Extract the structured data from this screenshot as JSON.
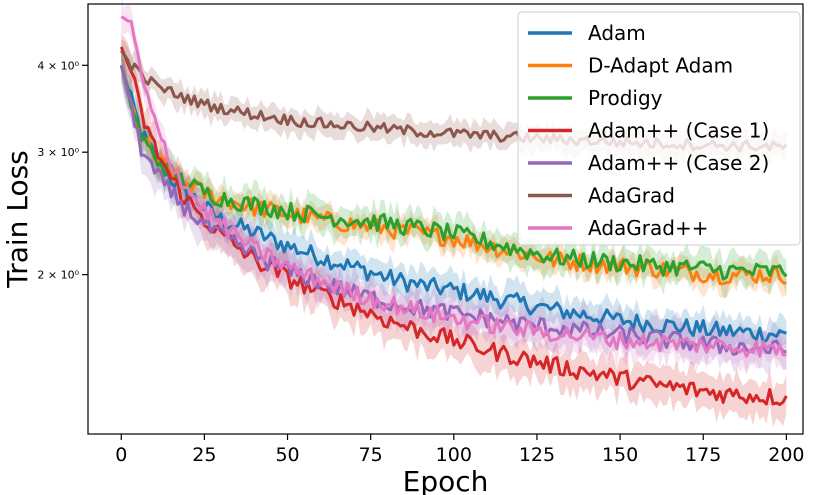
{
  "chart_data": {
    "type": "line",
    "title": "",
    "xlabel": "Epoch",
    "ylabel": "Train Loss",
    "xlim": [
      -10,
      205
    ],
    "ylim": [
      1.18,
      4.9
    ],
    "yscale": "log",
    "grid": false,
    "legend_position": "top-right",
    "xticks": [
      0,
      25,
      50,
      75,
      100,
      125,
      150,
      175,
      200
    ],
    "xtick_labels": [
      "0",
      "25",
      "50",
      "75",
      "100",
      "125",
      "150",
      "175",
      "200"
    ],
    "yticks": [
      2,
      3,
      4
    ],
    "ytick_labels": [
      "2 × 10⁰",
      "3 × 10⁰",
      "4 × 10⁰"
    ],
    "series": [
      {
        "name": "Adam",
        "color": "#1f77b4",
        "x": [
          0,
          3,
          6,
          10,
          15,
          20,
          25,
          30,
          40,
          50,
          60,
          70,
          80,
          90,
          100,
          110,
          120,
          130,
          140,
          150,
          160,
          170,
          180,
          190,
          200
        ],
        "y": [
          4.0,
          3.55,
          3.2,
          2.95,
          2.75,
          2.62,
          2.5,
          2.4,
          2.3,
          2.2,
          2.12,
          2.05,
          1.98,
          1.93,
          1.9,
          1.86,
          1.82,
          1.78,
          1.75,
          1.72,
          1.7,
          1.68,
          1.66,
          1.65,
          1.64
        ],
        "band": 0.05
      },
      {
        "name": "D-Adapt Adam",
        "color": "#ff7f0e",
        "x": [
          0,
          3,
          6,
          10,
          15,
          20,
          25,
          30,
          40,
          50,
          60,
          70,
          80,
          90,
          100,
          110,
          120,
          130,
          140,
          150,
          160,
          170,
          180,
          190,
          200
        ],
        "y": [
          4.0,
          3.5,
          3.15,
          2.95,
          2.8,
          2.7,
          2.62,
          2.57,
          2.5,
          2.45,
          2.4,
          2.36,
          2.33,
          2.29,
          2.26,
          2.2,
          2.15,
          2.1,
          2.08,
          2.06,
          2.04,
          2.02,
          2.0,
          2.0,
          2.0
        ],
        "band": 0.04
      },
      {
        "name": "Prodigy",
        "color": "#2ca02c",
        "x": [
          0,
          3,
          6,
          10,
          15,
          20,
          25,
          30,
          40,
          50,
          60,
          70,
          80,
          90,
          100,
          110,
          120,
          130,
          140,
          150,
          160,
          170,
          180,
          190,
          200
        ],
        "y": [
          4.0,
          3.5,
          3.15,
          2.95,
          2.8,
          2.7,
          2.63,
          2.58,
          2.52,
          2.47,
          2.43,
          2.4,
          2.37,
          2.33,
          2.29,
          2.23,
          2.17,
          2.12,
          2.1,
          2.08,
          2.06,
          2.05,
          2.03,
          2.02,
          2.02
        ],
        "band": 0.05
      },
      {
        "name": "Adam++ (Case 1)",
        "color": "#d62728",
        "x": [
          0,
          3,
          6,
          10,
          15,
          20,
          25,
          30,
          40,
          50,
          60,
          70,
          80,
          90,
          100,
          110,
          120,
          130,
          140,
          150,
          160,
          170,
          180,
          190,
          200
        ],
        "y": [
          4.25,
          3.9,
          3.4,
          3.05,
          2.75,
          2.55,
          2.4,
          2.28,
          2.1,
          1.98,
          1.88,
          1.8,
          1.72,
          1.66,
          1.61,
          1.56,
          1.52,
          1.48,
          1.45,
          1.42,
          1.39,
          1.37,
          1.35,
          1.34,
          1.33
        ],
        "band": 0.06
      },
      {
        "name": "Adam++ (Case 2)",
        "color": "#9467bd",
        "x": [
          0,
          3,
          6,
          10,
          15,
          20,
          25,
          30,
          40,
          50,
          60,
          70,
          80,
          90,
          100,
          110,
          120,
          130,
          140,
          150,
          160,
          170,
          180,
          190,
          200
        ],
        "y": [
          4.0,
          3.45,
          3.05,
          2.8,
          2.62,
          2.48,
          2.36,
          2.27,
          2.13,
          2.03,
          1.95,
          1.88,
          1.83,
          1.79,
          1.76,
          1.73,
          1.7,
          1.68,
          1.66,
          1.64,
          1.62,
          1.6,
          1.58,
          1.57,
          1.56
        ],
        "band": 0.06
      },
      {
        "name": "AdaGrad",
        "color": "#8c564b",
        "x": [
          0,
          3,
          6,
          10,
          15,
          20,
          25,
          30,
          40,
          50,
          60,
          70,
          80,
          90,
          100,
          110,
          120,
          130,
          140,
          150,
          160,
          170,
          180,
          190,
          200
        ],
        "y": [
          4.2,
          4.0,
          3.87,
          3.75,
          3.66,
          3.58,
          3.52,
          3.47,
          3.4,
          3.34,
          3.3,
          3.27,
          3.24,
          3.21,
          3.19,
          3.17,
          3.15,
          3.13,
          3.12,
          3.1,
          3.09,
          3.08,
          3.07,
          3.06,
          3.05
        ],
        "band": 0.04
      },
      {
        "name": "AdaGrad++",
        "color": "#e377c2",
        "x": [
          0,
          3,
          6,
          10,
          15,
          20,
          25,
          30,
          40,
          50,
          60,
          70,
          80,
          90,
          100,
          110,
          120,
          130,
          140,
          150,
          160,
          170,
          180,
          190,
          200
        ],
        "y": [
          4.7,
          4.6,
          3.85,
          3.3,
          2.9,
          2.65,
          2.48,
          2.36,
          2.18,
          2.05,
          1.96,
          1.88,
          1.82,
          1.77,
          1.73,
          1.7,
          1.67,
          1.65,
          1.63,
          1.61,
          1.6,
          1.59,
          1.58,
          1.57,
          1.56
        ],
        "band": 0.05
      }
    ]
  }
}
